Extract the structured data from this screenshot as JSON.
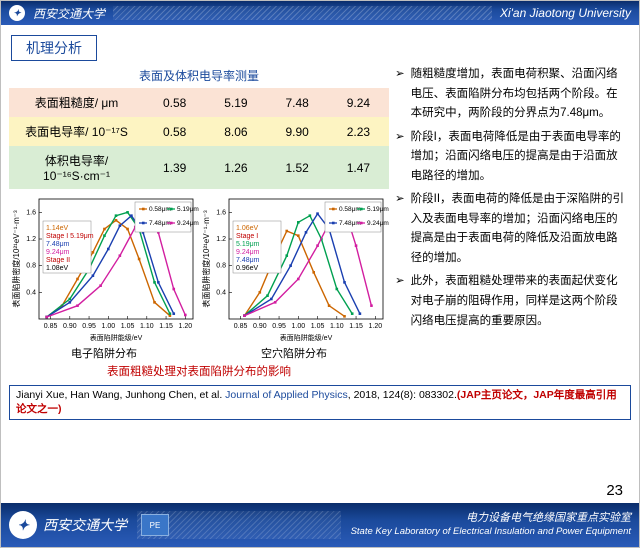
{
  "header": {
    "uni_cn": "西安交通大学",
    "uni_en": "Xi'an Jiaotong University"
  },
  "section_tag": "机理分析",
  "table": {
    "title": "表面及体积电导率测量",
    "rows": [
      {
        "head": "表面粗糙度/ μm",
        "vals": [
          "0.58",
          "5.19",
          "7.48",
          "9.24"
        ],
        "bg": "#fbe3d5"
      },
      {
        "head": "表面电导率/ 10⁻¹⁷S",
        "vals": [
          "0.58",
          "8.06",
          "9.90",
          "2.23"
        ],
        "bg": "#fdf4c2"
      },
      {
        "head": "体积电导率/ 10⁻¹⁶S·cm⁻¹",
        "vals": [
          "1.39",
          "1.26",
          "1.52",
          "1.47"
        ],
        "bg": "#d9edd4"
      }
    ]
  },
  "charts": {
    "chart1": {
      "title_below": "电子陷阱分布",
      "xlabel": "表面陷阱能级/eV",
      "ylabel": "表面陷阱密度/10²¹eV⁻¹·m⁻³",
      "xlim": [
        0.82,
        1.22
      ],
      "xticks": [
        "0.85",
        "0.90",
        "0.95",
        "1.00",
        "1.05",
        "1.10",
        "1.15",
        "1.20"
      ],
      "ylim": [
        0.0,
        1.8
      ],
      "yticks": [
        "0.4",
        "0.8",
        "1.2",
        "1.6"
      ],
      "series": [
        {
          "label": "0.58μm",
          "color": "#cc6600"
        },
        {
          "label": "5.19μm",
          "color": "#00a050"
        },
        {
          "label": "7.48μm",
          "color": "#1a3fb0"
        },
        {
          "label": "9.24μm",
          "color": "#d21ea0"
        }
      ],
      "annotations": [
        {
          "text": "1.14eV",
          "color": "#cc6600"
        },
        {
          "text": "Stage I",
          "color": "#c00000"
        },
        {
          "text": "5.19μm",
          "color": "#00a050"
        },
        {
          "text": "7.48μm",
          "color": "#1a3fb0"
        },
        {
          "text": "9.24μm",
          "color": "#d21ea0"
        },
        {
          "text": "Stage II",
          "color": "#c00000"
        },
        {
          "text": "1.08eV",
          "color": "#000"
        }
      ],
      "curves": {
        "s1": [
          [
            0.84,
            0.03
          ],
          [
            0.88,
            0.2
          ],
          [
            0.92,
            0.6
          ],
          [
            0.96,
            1.0
          ],
          [
            0.99,
            1.35
          ],
          [
            1.02,
            1.48
          ],
          [
            1.05,
            1.35
          ],
          [
            1.08,
            0.9
          ],
          [
            1.12,
            0.25
          ],
          [
            1.16,
            0.05
          ]
        ],
        "s2": [
          [
            0.84,
            0.03
          ],
          [
            0.9,
            0.3
          ],
          [
            0.95,
            0.75
          ],
          [
            0.99,
            1.25
          ],
          [
            1.02,
            1.55
          ],
          [
            1.05,
            1.6
          ],
          [
            1.08,
            1.35
          ],
          [
            1.12,
            0.55
          ],
          [
            1.16,
            0.08
          ]
        ],
        "s3": [
          [
            0.84,
            0.03
          ],
          [
            0.9,
            0.25
          ],
          [
            0.96,
            0.65
          ],
          [
            1.0,
            1.05
          ],
          [
            1.03,
            1.4
          ],
          [
            1.06,
            1.55
          ],
          [
            1.09,
            1.3
          ],
          [
            1.13,
            0.55
          ],
          [
            1.17,
            0.08
          ]
        ],
        "s4": [
          [
            0.84,
            0.03
          ],
          [
            0.92,
            0.2
          ],
          [
            0.98,
            0.5
          ],
          [
            1.03,
            0.95
          ],
          [
            1.07,
            1.38
          ],
          [
            1.1,
            1.58
          ],
          [
            1.13,
            1.3
          ],
          [
            1.17,
            0.45
          ],
          [
            1.2,
            0.06
          ]
        ]
      }
    },
    "chart2": {
      "title_below": "空穴陷阱分布",
      "xlabel": "表面陷阱能级/eV",
      "ylabel": "表面陷阱密度/10²¹eV⁻¹·m⁻³",
      "xlim": [
        0.82,
        1.22
      ],
      "xticks": [
        "0.85",
        "0.90",
        "0.95",
        "1.00",
        "1.05",
        "1.10",
        "1.15",
        "1.20"
      ],
      "ylim": [
        0.0,
        1.8
      ],
      "yticks": [
        "0.4",
        "0.8",
        "1.2",
        "1.6"
      ],
      "series": [
        {
          "label": "0.58μm",
          "color": "#cc6600"
        },
        {
          "label": "5.19μm",
          "color": "#00a050"
        },
        {
          "label": "7.48μm",
          "color": "#1a3fb0"
        },
        {
          "label": "9.24μm",
          "color": "#d21ea0"
        }
      ],
      "annotations": [
        {
          "text": "1.06eV",
          "color": "#cc6600"
        },
        {
          "text": "Stage I",
          "color": "#c00000"
        },
        {
          "text": "5.19μm",
          "color": "#00a050"
        },
        {
          "text": "7.48μm",
          "color": "#1a3fb0"
        },
        {
          "text": "9.24μm",
          "color": "#d21ea0"
        },
        {
          "text": "0.96eV",
          "color": "#000"
        }
      ],
      "curves": {
        "s1": [
          [
            0.86,
            0.05
          ],
          [
            0.9,
            0.4
          ],
          [
            0.94,
            0.95
          ],
          [
            0.97,
            1.32
          ],
          [
            1.0,
            1.25
          ],
          [
            1.04,
            0.7
          ],
          [
            1.08,
            0.2
          ],
          [
            1.12,
            0.04
          ]
        ],
        "s2": [
          [
            0.86,
            0.05
          ],
          [
            0.92,
            0.35
          ],
          [
            0.97,
            0.95
          ],
          [
            1.0,
            1.45
          ],
          [
            1.03,
            1.55
          ],
          [
            1.06,
            1.2
          ],
          [
            1.1,
            0.45
          ],
          [
            1.14,
            0.08
          ]
        ],
        "s3": [
          [
            0.86,
            0.05
          ],
          [
            0.93,
            0.3
          ],
          [
            0.98,
            0.8
          ],
          [
            1.02,
            1.3
          ],
          [
            1.05,
            1.58
          ],
          [
            1.08,
            1.35
          ],
          [
            1.12,
            0.55
          ],
          [
            1.16,
            0.08
          ]
        ],
        "s4": [
          [
            0.86,
            0.05
          ],
          [
            0.94,
            0.25
          ],
          [
            1.0,
            0.6
          ],
          [
            1.05,
            1.1
          ],
          [
            1.09,
            1.55
          ],
          [
            1.12,
            1.65
          ],
          [
            1.15,
            1.1
          ],
          [
            1.19,
            0.2
          ]
        ]
      }
    },
    "caption_red": "表面粗糙处理对表面陷阱分布的影响"
  },
  "bullets": [
    "随粗糙度增加，表面电荷积聚、沿面闪络电压、表面陷阱分布均包括两个阶段。在本研究中，两阶段的分界点为7.48μm。",
    "阶段I，表面电荷降低是由于表面电导率的增加；沿面闪络电压的提高是由于沿面放电路径的增加。",
    "阶段II，表面电荷的降低是由于深陷阱的引入及表面电导率的增加；沿面闪络电压的提高是由于表面电荷的降低及沿面放电路径的增加。",
    "此外，表面粗糙处理带来的表面起伏变化对电子崩的阻碍作用，同样是这两个阶段闪络电压提高的重要原因。"
  ],
  "citation": {
    "authors": "Jianyi Xue, Han Wang, Junhong Chen, et al. ",
    "journal": "Journal of Applied Physics",
    "rest": ", 2018, 124(8): 083302.",
    "red": "(JAP主页论文，JAP年度最高引用论文之一)"
  },
  "footer": {
    "uni_cn": "西安交通大学",
    "lab_cn": "电力设备电气绝缘国家重点实验室",
    "lab_en": "State Key Laboratory of Electrical Insulation and Power Equipment",
    "badge": "PE"
  },
  "slide_number": "23"
}
